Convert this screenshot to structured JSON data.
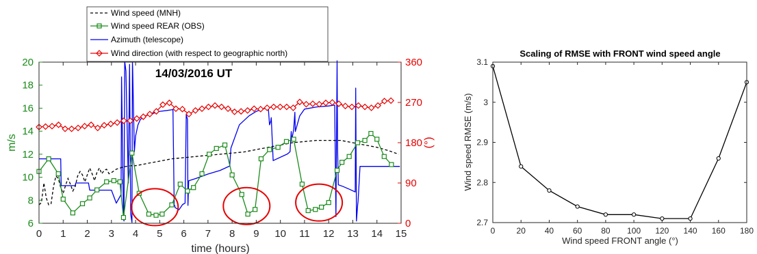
{
  "chart_data": [
    {
      "type": "line",
      "title": "14/03/2016 UT",
      "xlabel": "time (hours)",
      "ylabel_left": "m/s",
      "ylabel_right": "(°)",
      "xlim": [
        0,
        15
      ],
      "ylim_left": [
        6,
        20
      ],
      "ylim_right": [
        0,
        360
      ],
      "x_ticks": [
        0,
        1,
        2,
        3,
        4,
        5,
        6,
        7,
        8,
        9,
        10,
        11,
        12,
        13,
        14,
        15
      ],
      "y_left_ticks": [
        6,
        8,
        10,
        12,
        14,
        16,
        18,
        20
      ],
      "y_right_ticks": [
        0,
        90,
        180,
        270,
        360
      ],
      "grid": false,
      "legend_position": "top-center",
      "colors": {
        "left_axis": "#1a8a1a",
        "right_axis": "#e60000",
        "mnh": "#000000",
        "obs": "#1a8a1a",
        "azimuth": "#0000ee",
        "wind_dir": "#e60000",
        "circle": "#e60000"
      },
      "series": [
        {
          "name": "Wind speed (MNH)",
          "axis": "left",
          "style": "dashed",
          "x": [
            0.0,
            0.1,
            0.2,
            0.3,
            0.4,
            0.5,
            0.6,
            0.7,
            0.8,
            0.9,
            1.0,
            1.1,
            1.2,
            1.3,
            1.4,
            1.5,
            1.6,
            1.7,
            1.8,
            1.9,
            2.0,
            2.1,
            2.2,
            2.3,
            2.4,
            2.5,
            2.6,
            2.7,
            2.8,
            2.9,
            3.0,
            3.2,
            3.5,
            3.8,
            4.0,
            4.5,
            5.0,
            5.5,
            6.0,
            6.5,
            7.0,
            7.5,
            8.0,
            8.5,
            9.0,
            9.5,
            10.0,
            10.5,
            11.0,
            11.5,
            12.0,
            12.5,
            13.0,
            13.5,
            14.0,
            14.5,
            14.9
          ],
          "values": [
            7.6,
            7.8,
            9.5,
            8.2,
            7.6,
            7.7,
            9.2,
            10.1,
            9.9,
            9.1,
            8.6,
            9.3,
            9.9,
            9.4,
            8.8,
            9.2,
            10.1,
            10.5,
            10.2,
            9.6,
            10.2,
            10.8,
            10.3,
            9.7,
            10.4,
            10.8,
            10.3,
            10.6,
            10.7,
            10.3,
            10.4,
            10.7,
            10.9,
            11.0,
            11.0,
            11.2,
            11.4,
            11.6,
            11.7,
            11.8,
            11.9,
            12.0,
            12.1,
            12.2,
            12.4,
            12.6,
            12.8,
            13.0,
            13.1,
            13.2,
            13.2,
            13.2,
            13.0,
            12.8,
            12.6,
            12.3,
            12.0
          ]
        },
        {
          "name": "Wind speed REAR (OBS)",
          "axis": "left",
          "style": "solid-square",
          "x": [
            0.0,
            0.4,
            0.8,
            1.0,
            1.4,
            1.8,
            2.1,
            2.4,
            2.8,
            3.1,
            3.35,
            3.5,
            3.85,
            4.15,
            4.55,
            4.85,
            5.1,
            5.5,
            5.85,
            6.15,
            6.4,
            6.75,
            7.05,
            7.35,
            7.7,
            8.0,
            8.4,
            8.65,
            8.95,
            9.2,
            9.55,
            9.9,
            10.25,
            10.55,
            10.9,
            11.15,
            11.45,
            11.7,
            12.0,
            12.35,
            12.55,
            12.85,
            13.2,
            13.5,
            13.75,
            14.0,
            14.3,
            14.6
          ],
          "values": [
            10.5,
            11.6,
            10.3,
            8.1,
            6.9,
            7.7,
            8.2,
            8.9,
            9.6,
            9.7,
            9.6,
            6.5,
            12.1,
            8.6,
            6.8,
            6.7,
            6.8,
            7.6,
            9.4,
            8.8,
            9.1,
            10.3,
            12.0,
            12.5,
            12.8,
            10.2,
            8.5,
            6.8,
            7.2,
            11.6,
            12.4,
            12.6,
            13.1,
            13.3,
            9.4,
            7.1,
            7.2,
            7.4,
            7.8,
            10.6,
            11.3,
            11.8,
            13.0,
            13.2,
            13.8,
            13.3,
            11.8,
            11.1
          ]
        },
        {
          "name": "Azimuth (telescope)",
          "axis": "right",
          "style": "solid",
          "x": [
            0.0,
            0.2,
            0.4,
            0.7,
            0.9,
            0.92,
            1.5,
            1.52,
            2.05,
            2.1,
            3.0,
            3.2,
            3.4,
            3.42,
            3.5,
            3.52,
            3.55,
            3.6,
            3.7,
            3.75,
            3.8,
            3.85,
            3.87,
            3.88,
            3.95,
            4.0,
            4.1,
            4.2,
            4.4,
            4.7,
            5.0,
            5.3,
            5.55,
            5.6,
            5.62,
            5.64,
            5.8,
            5.95,
            6.05,
            6.1,
            6.15,
            6.17,
            6.2,
            6.5,
            7.0,
            7.5,
            7.9,
            7.95,
            8.3,
            8.7,
            9.0,
            9.3,
            9.5,
            9.55,
            9.6,
            9.62,
            9.7,
            10.3,
            10.4,
            10.45,
            10.47,
            10.55,
            10.6,
            10.62,
            10.8,
            11.0,
            11.5,
            12.0,
            12.25,
            12.3,
            12.35,
            12.37,
            12.4,
            12.6,
            12.9,
            13.1,
            13.12,
            13.15,
            13.2,
            13.22,
            13.3,
            14.0,
            14.95
          ],
          "values": [
            144,
            144,
            144,
            144,
            144,
            84,
            84,
            90,
            90,
            74,
            74,
            45,
            64,
            327,
            14,
            5,
            362,
            340,
            90,
            355,
            20,
            2,
            360,
            348,
            160,
            195,
            220,
            232,
            240,
            245,
            250,
            252,
            254,
            40,
            40,
            35,
            30,
            42,
            45,
            243,
            232,
            40,
            95,
            100,
            110,
            118,
            128,
            168,
            220,
            240,
            250,
            256,
            258,
            220,
            228,
            236,
            140,
            155,
            160,
            205,
            185,
            210,
            248,
            205,
            240,
            255,
            260,
            262,
            264,
            15,
            363,
            168,
            86,
            82,
            75,
            70,
            302,
            5,
            40,
            50,
            127,
            127,
            127
          ]
        },
        {
          "name": "Wind direction (with respect to geographic north)",
          "axis": "right",
          "style": "solid-diamond",
          "x": [
            0.0,
            0.27,
            0.54,
            0.81,
            1.08,
            1.35,
            1.62,
            1.89,
            2.16,
            2.43,
            2.7,
            2.97,
            3.24,
            3.51,
            3.78,
            4.05,
            4.32,
            4.59,
            4.86,
            5.13,
            5.4,
            5.67,
            5.94,
            6.21,
            6.48,
            6.75,
            7.02,
            7.29,
            7.56,
            7.83,
            8.1,
            8.37,
            8.64,
            8.91,
            9.18,
            9.45,
            9.72,
            9.99,
            10.26,
            10.53,
            10.8,
            11.07,
            11.34,
            11.61,
            11.88,
            12.15,
            12.42,
            12.69,
            12.96,
            13.23,
            13.5,
            13.77,
            14.04,
            14.31,
            14.58
          ],
          "values": [
            215,
            216,
            217,
            220,
            211,
            211,
            213,
            217,
            220,
            213,
            219,
            222,
            225,
            229,
            229,
            234,
            238,
            244,
            250,
            265,
            269,
            256,
            255,
            244,
            252,
            256,
            260,
            263,
            260,
            256,
            249,
            250,
            252,
            256,
            255,
            258,
            260,
            260,
            260,
            258,
            271,
            266,
            267,
            266,
            269,
            270,
            267,
            262,
            260,
            263,
            260,
            258,
            263,
            273,
            274
          ]
        }
      ],
      "annotations": [
        {
          "shape": "ellipse",
          "center": [
            4.8,
            7.4
          ]
        },
        {
          "shape": "ellipse",
          "center": [
            8.6,
            7.5
          ]
        },
        {
          "shape": "ellipse",
          "center": [
            11.6,
            7.8
          ]
        }
      ]
    },
    {
      "type": "line",
      "title": "Scaling of RMSE with FRONT wind speed angle",
      "xlabel": "Wind speed FRONT angle (°)",
      "ylabel": "Wind speed RMSE (m/s)",
      "xlim": [
        0,
        180
      ],
      "ylim": [
        2.7,
        3.1
      ],
      "x_ticks": [
        0,
        20,
        40,
        60,
        80,
        100,
        120,
        140,
        160,
        180
      ],
      "y_ticks": [
        2.7,
        2.8,
        2.9,
        3,
        3.1
      ],
      "grid": false,
      "x": [
        0,
        20,
        40,
        60,
        80,
        100,
        120,
        140,
        160,
        180
      ],
      "values": [
        3.09,
        2.84,
        2.78,
        2.74,
        2.72,
        2.72,
        2.71,
        2.71,
        2.86,
        3.05
      ]
    }
  ]
}
